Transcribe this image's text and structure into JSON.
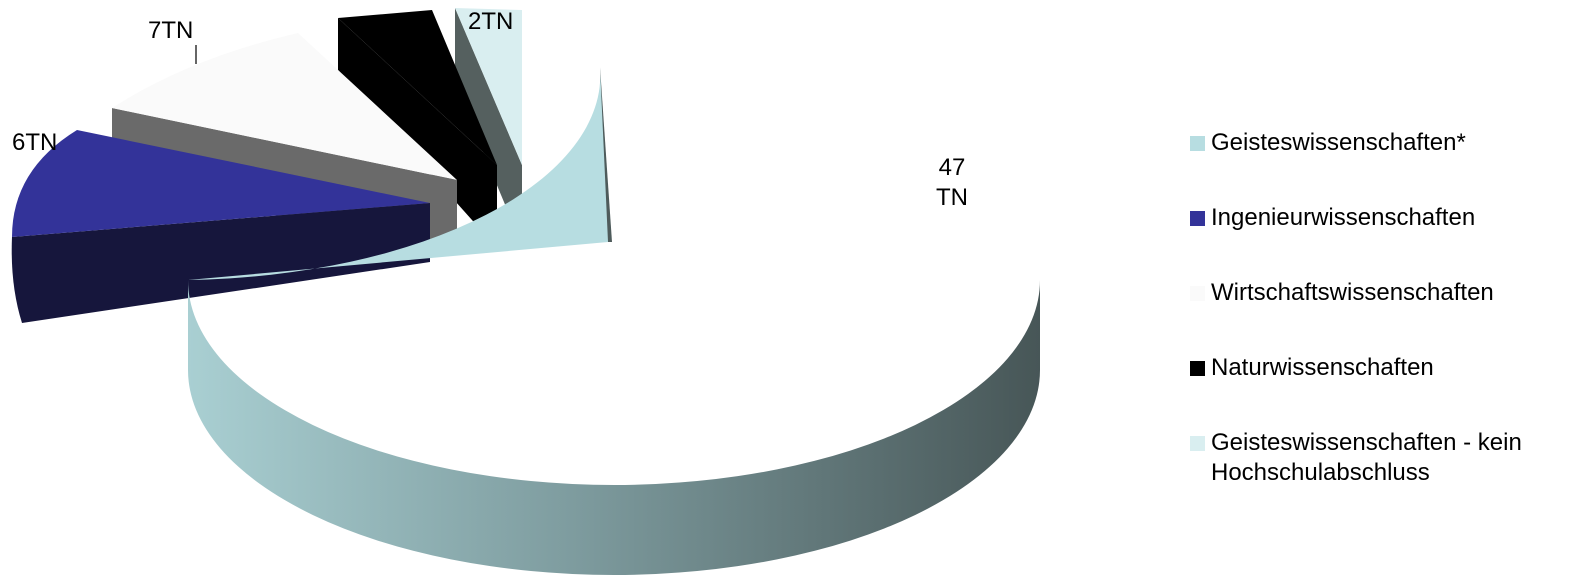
{
  "chart_data": {
    "type": "pie",
    "style": "3d-exploded",
    "categories": [
      "Geisteswissenschaften*",
      "Ingenieurwissenschaften",
      "Wirtschaftswissenschaften",
      "Naturwissenschaften",
      "Geisteswissenschaften - kein\nHochschulabschluss"
    ],
    "values": [
      47,
      6,
      7,
      3,
      2
    ],
    "data_labels": [
      "47\nTN",
      "6TN",
      "7TN",
      "",
      "2TN"
    ],
    "colors": [
      "#b7dde1",
      "#333399",
      "#fafafa",
      "#000000",
      "#d9eef0"
    ],
    "legend_position": "right",
    "title": ""
  }
}
